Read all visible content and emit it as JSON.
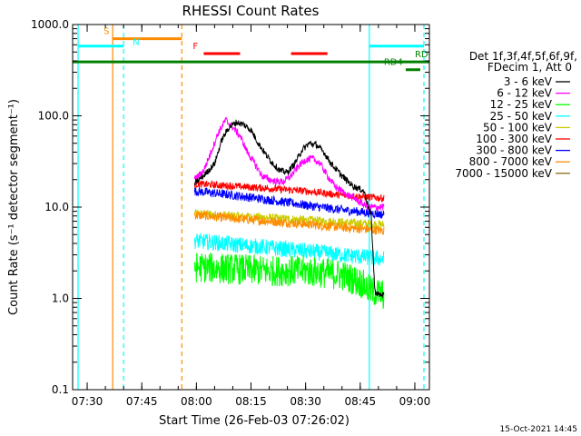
{
  "chart_data": {
    "type": "line",
    "title": "RHESSI Count Rates",
    "xlabel": "Start Time (26-Feb-03 07:26:02)",
    "ylabel": "Count Rate (s⁻¹ detector segment⁻¹)",
    "yscale": "log",
    "ylim": [
      0.1,
      1000
    ],
    "xlim": [
      "07:26",
      "09:04"
    ],
    "x_ticks": [
      "07:30",
      "07:45",
      "08:00",
      "08:15",
      "08:30",
      "08:45",
      "09:00"
    ],
    "y_ticks": [
      "0.1",
      "1.0",
      "10.0",
      "100.0",
      "1000.0"
    ],
    "legend_position": "right",
    "legend_header": [
      "Det 1f,3f,4f,5f,6f,9f,",
      "FDecim 1, Att 0"
    ],
    "footer_date": "15-Oct-2021 14:45",
    "data_start": "07:59:30",
    "data_end": "08:51:30",
    "series": [
      {
        "name": "3 - 6 keV",
        "color": "#000000",
        "x": [
          "07:59:30",
          "08:02",
          "08:05",
          "08:07",
          "08:09",
          "08:11",
          "08:13",
          "08:15",
          "08:17",
          "08:19",
          "08:21",
          "08:23",
          "08:25",
          "08:27",
          "08:29",
          "08:31",
          "08:33",
          "08:35",
          "08:37",
          "08:40",
          "08:43",
          "08:46",
          "08:48",
          "08:49",
          "08:50",
          "08:51:30"
        ],
        "values": [
          18,
          22,
          30,
          55,
          75,
          85,
          80,
          70,
          50,
          38,
          30,
          25,
          24,
          30,
          42,
          50,
          48,
          40,
          30,
          22,
          17,
          15,
          8,
          1.2,
          1.1,
          1.1
        ]
      },
      {
        "name": "6 - 12 keV",
        "color": "#ff00ff",
        "x": [
          "07:59:30",
          "08:02",
          "08:04",
          "08:06",
          "08:08",
          "08:10",
          "08:12",
          "08:14",
          "08:16",
          "08:18",
          "08:20",
          "08:22",
          "08:24",
          "08:26",
          "08:28",
          "08:30",
          "08:32",
          "08:34",
          "08:36",
          "08:38",
          "08:41",
          "08:44",
          "08:47",
          "08:50",
          "08:51:30"
        ],
        "values": [
          20,
          25,
          40,
          65,
          90,
          75,
          60,
          40,
          30,
          22,
          20,
          19,
          19,
          22,
          28,
          33,
          34,
          30,
          22,
          17,
          14,
          12,
          10,
          10,
          10
        ]
      },
      {
        "name": "12 - 25 keV",
        "color": "#00ff00",
        "x": [
          "07:59:30",
          "08:10",
          "08:20",
          "08:30",
          "08:40",
          "08:45",
          "08:48",
          "08:51:30"
        ],
        "values": [
          2.2,
          2.1,
          2.0,
          2.0,
          1.8,
          1.5,
          1.2,
          1.1
        ]
      },
      {
        "name": "25 - 50 keV",
        "color": "#00ffff",
        "x": [
          "07:59:30",
          "08:10",
          "08:20",
          "08:30",
          "08:40",
          "08:51:30"
        ],
        "values": [
          4.3,
          3.9,
          3.6,
          3.3,
          3.0,
          2.7
        ]
      },
      {
        "name": "50 - 100 keV",
        "color": "#cccc00",
        "x": [
          "07:59:30",
          "08:10",
          "08:20",
          "08:30",
          "08:40",
          "08:51:30"
        ],
        "values": [
          8.5,
          8.0,
          7.6,
          7.2,
          6.8,
          6.4
        ]
      },
      {
        "name": "100 - 300 keV",
        "color": "#ff0000",
        "x": [
          "07:59:30",
          "08:10",
          "08:20",
          "08:30",
          "08:40",
          "08:51:30"
        ],
        "values": [
          18,
          17,
          16,
          15,
          13.5,
          12.5
        ]
      },
      {
        "name": "300 - 800 keV",
        "color": "#0000ff",
        "x": [
          "07:59:30",
          "08:10",
          "08:20",
          "08:30",
          "08:40",
          "08:51:30"
        ],
        "values": [
          15,
          13.5,
          12,
          10.5,
          9.3,
          8.3
        ]
      },
      {
        "name": "800 - 7000 keV",
        "color": "#ff8c00",
        "x": [
          "07:59:30",
          "08:10",
          "08:20",
          "08:30",
          "08:40",
          "08:51:30"
        ],
        "values": [
          8.2,
          7.5,
          7.0,
          6.5,
          6.0,
          5.5
        ]
      },
      {
        "name": "7000 - 15000 keV",
        "color": "#8b6914",
        "x": [],
        "values": []
      }
    ],
    "annotations": {
      "vertical_lines": [
        {
          "time": "07:27:30",
          "color": "#00ffff",
          "dashed": false
        },
        {
          "time": "07:37",
          "color": "#ff8c00",
          "dashed": false
        },
        {
          "time": "07:40",
          "color": "#00ffff",
          "dashed": true
        },
        {
          "time": "07:56",
          "color": "#ff8c00",
          "dashed": true
        },
        {
          "time": "08:47:30",
          "color": "#00ffff",
          "dashed": false
        },
        {
          "time": "09:02:30",
          "color": "#00ffff",
          "dashed": true
        }
      ],
      "bars": [
        {
          "label": "S",
          "label_color": "#ff8c00",
          "color": "#ff8c00",
          "start": "07:37",
          "end": "07:56",
          "level": 700,
          "label_time": "07:34:30"
        },
        {
          "label": "N",
          "label_color": "#00ffff",
          "color": "#00ffff",
          "start": "07:27:30",
          "end": "07:40",
          "level": 580,
          "label_time": "07:42:30",
          "label_level": 530
        },
        {
          "label": "",
          "label_color": "#00ffff",
          "color": "#00ffff",
          "start": "08:47:30",
          "end": "09:02:30",
          "level": 580
        },
        {
          "label": "F",
          "label_color": "#ff0000",
          "color": "#ff0000",
          "start": "08:02",
          "end": "08:12",
          "level": 480,
          "label_time": "07:59"
        },
        {
          "label": "",
          "label_color": "#ff0000",
          "color": "#ff0000",
          "start": "08:26",
          "end": "08:36",
          "level": 480
        },
        {
          "label": "RDO",
          "label_color": "#008000",
          "color": "#008000",
          "start": "07:26",
          "end": "09:04",
          "level": 390,
          "label_time": "09:00"
        },
        {
          "label": "RD4",
          "label_color": "#008000",
          "color": "#008000",
          "start": "08:57:30",
          "end": "09:01:30",
          "level": 320,
          "label_time": "08:51:30"
        }
      ]
    }
  }
}
